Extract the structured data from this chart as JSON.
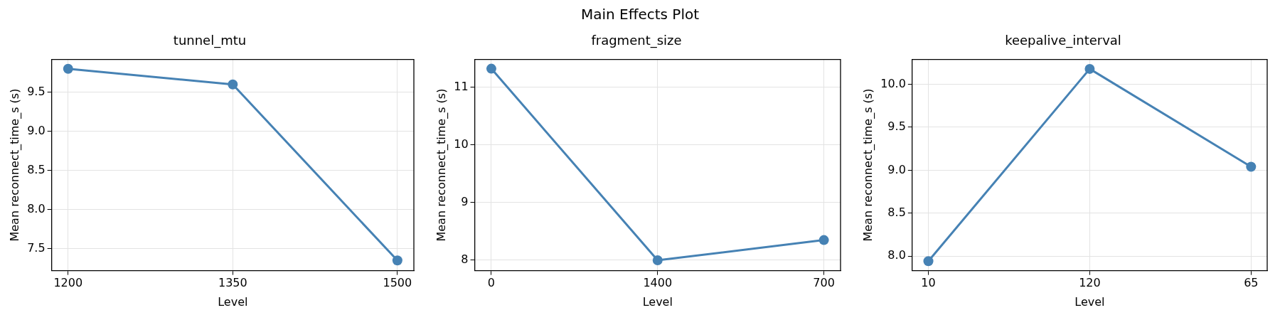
{
  "chart_data": [
    {
      "type": "line",
      "title": "tunnel_mtu",
      "xlabel": "Level",
      "ylabel": "Mean reconnect_time_s (s)",
      "annotations": [
        "Main Effects Plot"
      ],
      "categories": [
        "1200",
        "1350",
        "1500"
      ],
      "series": [
        {
          "color": "#4682b4",
          "values": [
            9.8,
            9.6,
            7.35
          ]
        }
      ],
      "ylim": [
        7.22,
        9.92
      ],
      "yticks": [
        {
          "value": 7.5,
          "label": "7.5"
        },
        {
          "value": 8,
          "label": "8.0"
        },
        {
          "value": 8.5,
          "label": "8.5"
        },
        {
          "value": 9,
          "label": "9.0"
        },
        {
          "value": 9.5,
          "label": "9.5"
        }
      ],
      "grid": true,
      "marker": "circle",
      "legend": false
    },
    {
      "type": "line",
      "title": "fragment_size",
      "xlabel": "Level",
      "ylabel": "Mean reconnect_time_s (s)",
      "categories": [
        "0",
        "1400",
        "700"
      ],
      "series": [
        {
          "color": "#4682b4",
          "values": [
            11.32,
            8.0,
            8.35
          ]
        }
      ],
      "ylim": [
        7.82,
        11.48
      ],
      "yticks": [
        8,
        9,
        10,
        11
      ],
      "grid": true,
      "marker": "circle",
      "legend": false
    },
    {
      "type": "line",
      "title": "keepalive_interval",
      "xlabel": "Level",
      "ylabel": "Mean reconnect_time_s (s)",
      "categories": [
        "10",
        "120",
        "65"
      ],
      "series": [
        {
          "color": "#4682b4",
          "values": [
            7.94,
            10.18,
            9.04
          ]
        }
      ],
      "ylim": [
        7.83,
        10.29
      ],
      "yticks": [
        {
          "value": 8,
          "label": "8.0"
        },
        {
          "value": 8.5,
          "label": "8.5"
        },
        {
          "value": 9,
          "label": "9.0"
        },
        {
          "value": 9.5,
          "label": "9.5"
        },
        {
          "value": 10,
          "label": "10.0"
        }
      ],
      "grid": true,
      "marker": "circle",
      "legend": false
    }
  ]
}
